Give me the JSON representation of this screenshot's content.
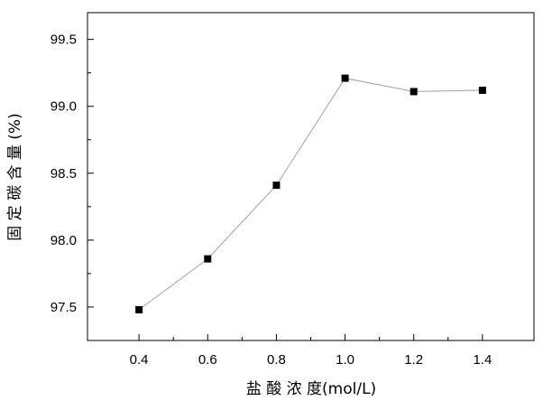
{
  "chart_data": {
    "type": "line",
    "title": "",
    "xlabel": "盐 酸 浓 度(mol/L)",
    "ylabel": "固 定 碳 含 量 (%)",
    "xlim": [
      0.25,
      1.55
    ],
    "ylim": [
      97.25,
      99.7
    ],
    "x_ticks": [
      "0.4",
      "0.6",
      "0.8",
      "1.0",
      "1.2",
      "1.4"
    ],
    "y_ticks": [
      "97.5",
      "98.0",
      "98.5",
      "99.0",
      "99.5"
    ],
    "grid": false,
    "legend": "none",
    "marker": "square",
    "line_color": "#a0a0a0",
    "marker_color": "#000000",
    "series": [
      {
        "x": [
          0.4,
          0.6,
          0.8,
          1.0,
          1.2,
          1.4
        ],
        "y": [
          97.48,
          97.86,
          98.41,
          99.21,
          99.11,
          99.12
        ]
      }
    ]
  }
}
